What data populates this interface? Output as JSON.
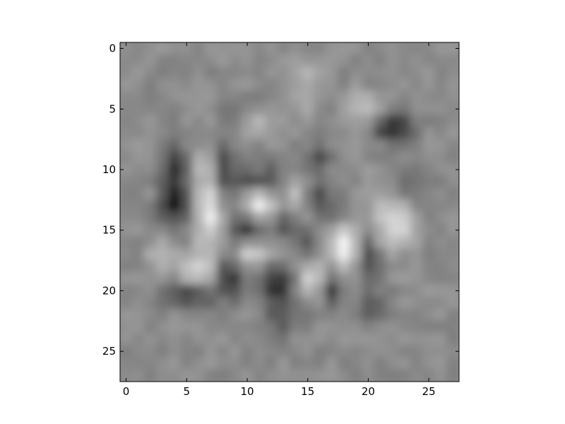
{
  "chart_data": {
    "type": "heatmap",
    "colormap": "gray",
    "interpolation": "smooth",
    "rows": 28,
    "cols": 28,
    "x_ticks": [
      "0",
      "5",
      "10",
      "15",
      "20",
      "25"
    ],
    "y_ticks": [
      "0",
      "5",
      "10",
      "15",
      "20",
      "25"
    ],
    "x_tick_values": [
      0,
      5,
      10,
      15,
      20,
      25
    ],
    "y_tick_values": [
      0,
      5,
      10,
      15,
      20,
      25
    ],
    "xlim": [
      -0.5,
      27.5
    ],
    "ylim": [
      27.5,
      -0.5
    ],
    "y_axis_inverted": true,
    "grid": false,
    "title": "",
    "xlabel": "",
    "ylabel": "",
    "background_gray_level": 0.55,
    "features": [
      {
        "x": 4,
        "y": 10,
        "sx": 0.7,
        "sy": 1.6,
        "v": -0.9
      },
      {
        "x": 4,
        "y": 13,
        "sx": 0.8,
        "sy": 1.0,
        "v": -1.0
      },
      {
        "x": 7,
        "y": 13,
        "sx": 0.7,
        "sy": 1.6,
        "v": 0.85
      },
      {
        "x": 6.5,
        "y": 10,
        "sx": 0.5,
        "sy": 1.0,
        "v": 0.6
      },
      {
        "x": 8,
        "y": 9.5,
        "sx": 0.6,
        "sy": 1.2,
        "v": -0.8
      },
      {
        "x": 6.5,
        "y": 16,
        "sx": 0.6,
        "sy": 1.5,
        "v": 0.4
      },
      {
        "x": 6,
        "y": 18.5,
        "sx": 1.0,
        "sy": 0.8,
        "v": 0.7
      },
      {
        "x": 5,
        "y": 20.5,
        "sx": 1.4,
        "sy": 0.7,
        "v": -0.85
      },
      {
        "x": 8.5,
        "y": 19,
        "sx": 0.8,
        "sy": 1.2,
        "v": -0.9
      },
      {
        "x": 8.5,
        "y": 12.5,
        "sx": 0.7,
        "sy": 0.8,
        "v": -0.4
      },
      {
        "x": 10,
        "y": 11,
        "sx": 1.2,
        "sy": 0.6,
        "v": -0.7
      },
      {
        "x": 11,
        "y": 13,
        "sx": 0.9,
        "sy": 0.9,
        "v": 0.9
      },
      {
        "x": 12,
        "y": 10.5,
        "sx": 0.7,
        "sy": 0.8,
        "v": -0.6
      },
      {
        "x": 10,
        "y": 15,
        "sx": 0.9,
        "sy": 0.7,
        "v": -0.9
      },
      {
        "x": 13,
        "y": 14.5,
        "sx": 0.8,
        "sy": 0.7,
        "v": -0.7
      },
      {
        "x": 11,
        "y": 17,
        "sx": 1.5,
        "sy": 0.7,
        "v": 0.7
      },
      {
        "x": 12.5,
        "y": 19.5,
        "sx": 0.9,
        "sy": 1.4,
        "v": -1.0
      },
      {
        "x": 14,
        "y": 12.5,
        "sx": 0.6,
        "sy": 1.0,
        "v": 0.5
      },
      {
        "x": 15,
        "y": 16,
        "sx": 0.6,
        "sy": 0.8,
        "v": -0.5
      },
      {
        "x": 15.5,
        "y": 19,
        "sx": 0.7,
        "sy": 1.0,
        "v": 0.75
      },
      {
        "x": 17,
        "y": 20,
        "sx": 0.6,
        "sy": 1.0,
        "v": -0.8
      },
      {
        "x": 16,
        "y": 12,
        "sx": 0.6,
        "sy": 1.4,
        "v": -0.5
      },
      {
        "x": 18,
        "y": 16.5,
        "sx": 0.8,
        "sy": 1.2,
        "v": 1.0
      },
      {
        "x": 20,
        "y": 17,
        "sx": 0.6,
        "sy": 1.8,
        "v": -0.7
      },
      {
        "x": 17.5,
        "y": 13,
        "sx": 0.6,
        "sy": 0.9,
        "v": -0.4
      },
      {
        "x": 21.5,
        "y": 14,
        "sx": 1.2,
        "sy": 1.6,
        "v": 0.6
      },
      {
        "x": 22,
        "y": 6.5,
        "sx": 1.2,
        "sy": 0.8,
        "v": -1.0
      },
      {
        "x": 20,
        "y": 5,
        "sx": 1.2,
        "sy": 0.8,
        "v": 0.6
      },
      {
        "x": 23.5,
        "y": 11,
        "sx": 1.0,
        "sy": 1.0,
        "v": -0.4
      },
      {
        "x": 23,
        "y": 15,
        "sx": 0.8,
        "sy": 1.2,
        "v": 0.4
      },
      {
        "x": 16,
        "y": 9,
        "sx": 0.8,
        "sy": 0.7,
        "v": -0.5
      },
      {
        "x": 11,
        "y": 6,
        "sx": 1.2,
        "sy": 0.8,
        "v": 0.3
      },
      {
        "x": 9,
        "y": 5,
        "sx": 1.0,
        "sy": 0.8,
        "v": -0.35
      },
      {
        "x": 3,
        "y": 17,
        "sx": 0.9,
        "sy": 0.9,
        "v": 0.35
      },
      {
        "x": 20.5,
        "y": 21.5,
        "sx": 1.0,
        "sy": 1.0,
        "v": -0.4
      },
      {
        "x": 13,
        "y": 22.5,
        "sx": 1.2,
        "sy": 0.9,
        "v": -0.4
      },
      {
        "x": 15,
        "y": 2,
        "sx": 1.0,
        "sy": 0.8,
        "v": 0.3
      },
      {
        "x": 14.5,
        "y": 4.5,
        "sx": 0.7,
        "sy": 0.7,
        "v": 0.3
      }
    ]
  }
}
